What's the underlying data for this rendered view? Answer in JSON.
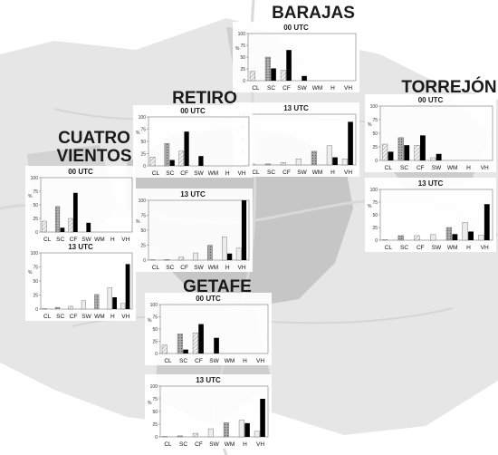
{
  "colors": {
    "map_background": "#e6e6e6",
    "map_urban": "#bdbdbd",
    "map_roads": "#d0d0d0",
    "bar_dark": "#000000",
    "bar_grey": "#a8a8a8",
    "bar_light": "#ececec",
    "bar_hatched": "#c8c8c8"
  },
  "legend_note": "bar patterns: CL/CF light-hatched, SC/WM grey-dotted, SW/H light, VH black",
  "chart_data": [
    {
      "type": "bar",
      "station": "BARAJAS",
      "panel": "00 UTC",
      "categories": [
        "CL",
        "SC",
        "CF",
        "SW",
        "WM",
        "H",
        "VH"
      ],
      "series": [
        {
          "values": [
            20,
            50,
            22,
            0,
            0,
            0,
            0
          ]
        },
        {
          "values": [
            0,
            26,
            65,
            10,
            0,
            0,
            0
          ]
        }
      ],
      "ylabel": "%",
      "ylim": [
        0,
        100
      ],
      "yticks": [
        0,
        25,
        50,
        75,
        100
      ]
    },
    {
      "type": "bar",
      "station": "BARAJAS",
      "panel": "13 UTC",
      "categories": [
        "CL",
        "SC",
        "CF",
        "SW",
        "WM",
        "H",
        "VH"
      ],
      "series": [
        {
          "values": [
            2,
            2,
            5,
            12,
            27,
            38,
            12
          ]
        },
        {
          "values": [
            0,
            0,
            0,
            0,
            0,
            15,
            85
          ]
        }
      ],
      "ylabel": "%",
      "ylim": [
        0,
        100
      ],
      "yticks": [
        0,
        25,
        50,
        75,
        100
      ]
    },
    {
      "type": "bar",
      "station": "RETIRO",
      "panel": "00 UTC",
      "categories": [
        "CL",
        "SC",
        "CF",
        "SW",
        "WM",
        "H",
        "VH"
      ],
      "series": [
        {
          "values": [
            18,
            46,
            30,
            0,
            0,
            0,
            0
          ]
        },
        {
          "values": [
            0,
            12,
            70,
            20,
            0,
            0,
            0
          ]
        }
      ],
      "ylabel": "%",
      "ylim": [
        0,
        100
      ],
      "yticks": [
        0,
        25,
        50,
        75,
        100
      ]
    },
    {
      "type": "bar",
      "station": "RETIRO",
      "panel": "13 UTC",
      "categories": [
        "CL",
        "SC",
        "CF",
        "SW",
        "WM",
        "H",
        "VH"
      ],
      "series": [
        {
          "values": [
            1,
            1,
            5,
            12,
            25,
            39,
            20
          ]
        },
        {
          "values": [
            0,
            0,
            0,
            0,
            0,
            11,
            100
          ]
        }
      ],
      "ylabel": "%",
      "ylim": [
        0,
        100
      ],
      "yticks": [
        0,
        25,
        50,
        75,
        100
      ]
    },
    {
      "type": "bar",
      "station": "TORREJÓN",
      "panel": "00 UTC",
      "categories": [
        "CL",
        "SC",
        "CF",
        "SW",
        "WM",
        "H",
        "VH"
      ],
      "series": [
        {
          "values": [
            30,
            42,
            28,
            5,
            0,
            0,
            0
          ]
        },
        {
          "values": [
            16,
            28,
            46,
            12,
            0,
            0,
            0
          ]
        }
      ],
      "ylabel": "%",
      "ylim": [
        0,
        100
      ],
      "yticks": [
        0,
        25,
        50,
        75,
        100
      ]
    },
    {
      "type": "bar",
      "station": "TORREJÓN",
      "panel": "13 UTC",
      "categories": [
        "CL",
        "SC",
        "CF",
        "SW",
        "WM",
        "H",
        "VH"
      ],
      "series": [
        {
          "values": [
            1,
            9,
            9,
            11,
            25,
            35,
            10
          ]
        },
        {
          "values": [
            0,
            0,
            0,
            0,
            12,
            17,
            71
          ]
        }
      ],
      "ylabel": "%",
      "ylim": [
        0,
        100
      ],
      "yticks": [
        0,
        25,
        50,
        75,
        100
      ]
    },
    {
      "type": "bar",
      "station": "CUATRO VIENTOS",
      "panel": "00 UTC",
      "categories": [
        "CL",
        "SC",
        "CF",
        "SW",
        "WM",
        "H",
        "VH"
      ],
      "series": [
        {
          "values": [
            20,
            47,
            25,
            0,
            0,
            0,
            0
          ]
        },
        {
          "values": [
            0,
            8,
            72,
            17,
            0,
            0,
            0
          ]
        }
      ],
      "ylabel": "%",
      "ylim": [
        0,
        100
      ],
      "yticks": [
        0,
        25,
        50,
        75,
        100
      ]
    },
    {
      "type": "bar",
      "station": "CUATRO VIENTOS",
      "panel": "13 UTC",
      "categories": [
        "CL",
        "SC",
        "CF",
        "SW",
        "WM",
        "H",
        "VH"
      ],
      "series": [
        {
          "values": [
            1,
            3,
            5,
            15,
            26,
            38,
            10
          ]
        },
        {
          "values": [
            0,
            0,
            0,
            0,
            0,
            21,
            80
          ]
        }
      ],
      "ylabel": "%",
      "ylim": [
        0,
        100
      ],
      "yticks": [
        0,
        25,
        50,
        75,
        100
      ]
    },
    {
      "type": "bar",
      "station": "GETAFE",
      "panel": "00 UTC",
      "categories": [
        "CL",
        "SC",
        "CF",
        "SW",
        "WM",
        "H",
        "VH"
      ],
      "series": [
        {
          "values": [
            17,
            40,
            42,
            0,
            0,
            0,
            0
          ]
        },
        {
          "values": [
            0,
            8,
            60,
            32,
            0,
            0,
            0
          ]
        }
      ],
      "ylabel": "%",
      "ylim": [
        0,
        100
      ],
      "yticks": [
        0,
        25,
        50,
        75,
        100
      ]
    },
    {
      "type": "bar",
      "station": "GETAFE",
      "panel": "13 UTC",
      "categories": [
        "CL",
        "SC",
        "CF",
        "SW",
        "WM",
        "H",
        "VH"
      ],
      "series": [
        {
          "values": [
            1,
            2,
            7,
            16,
            28,
            33,
            11
          ]
        },
        {
          "values": [
            0,
            0,
            0,
            0,
            0,
            27,
            75
          ]
        }
      ],
      "ylabel": "%",
      "ylim": [
        0,
        100
      ],
      "yticks": [
        0,
        25,
        50,
        75,
        100
      ]
    }
  ],
  "stations": {
    "barajas": {
      "name": "BARAJAS",
      "panel_00": "00 UTC",
      "panel_13": "13 UTC"
    },
    "retiro": {
      "name": "RETIRO",
      "panel_00": "00 UTC",
      "panel_13": "13 UTC"
    },
    "torrejon": {
      "name": "TORREJÓN",
      "panel_00": "00 UTC",
      "panel_13": "13 UTC"
    },
    "cuatro_vientos": {
      "name_line1": "CUATRO",
      "name_line2": "VIENTOS",
      "panel_00": "00 UTC",
      "panel_13": "13 UTC"
    },
    "getafe": {
      "name": "GETAFE",
      "panel_00": "00 UTC",
      "panel_13": "13 UTC"
    }
  }
}
